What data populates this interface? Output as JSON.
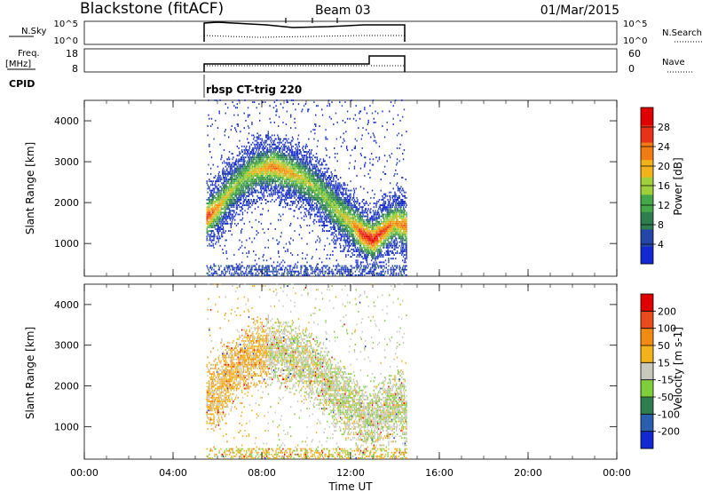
{
  "header": {
    "station": "Blackstone (fitACF)",
    "beam": "Beam 03",
    "date": "01/Mar/2015"
  },
  "noise_panel": {
    "left_label": "N.Sky",
    "left_ticks": [
      "10^5",
      "10^0"
    ],
    "right_ticks": [
      "10^5",
      "10^0"
    ],
    "right_label": "N.Search"
  },
  "freq_panel": {
    "left_label_line1": "Freq.",
    "left_label_line2": "[MHz]",
    "left_ticks": [
      "18",
      "8"
    ],
    "right_ticks": [
      "60",
      "0"
    ],
    "right_label": "Nave"
  },
  "cpid": {
    "label": "CPID",
    "program": "rbsp CT-trig 220"
  },
  "x_axis": {
    "label": "Time UT",
    "ticks": [
      "00:00",
      "04:00",
      "08:00",
      "12:00",
      "16:00",
      "20:00",
      "00:00"
    ]
  },
  "colors": {
    "power": [
      "#1428d2",
      "#2346a8",
      "#2e7d4f",
      "#44a84a",
      "#9fd03c",
      "#f2b21c",
      "#f27c14",
      "#e8321a",
      "#e00000"
    ],
    "velocity": [
      "#1428d2",
      "#2a5fb0",
      "#2e7d4f",
      "#7fcf3c",
      "#c8c8bc",
      "#f2b21c",
      "#f28a14",
      "#e84a1a",
      "#e00000"
    ]
  },
  "chart_data": [
    {
      "type": "heatmap",
      "name": "Power",
      "ylabel": "Slant Range [km]",
      "ylim": [
        200,
        4500
      ],
      "yticks": [
        "1000",
        "2000",
        "3000",
        "4000"
      ],
      "xlim_hours": [
        0,
        24
      ],
      "time_coverage_hours": [
        5.5,
        14.5
      ],
      "colorbar": {
        "label": "Power [dB]",
        "ticks": [
          "4",
          "8",
          "12",
          "16",
          "20",
          "24",
          "28"
        ],
        "range": [
          0,
          30
        ]
      },
      "traces": [
        {
          "t": [
            5.5,
            6.0,
            6.5,
            7.0,
            7.5,
            8.0,
            8.5,
            9.0,
            9.5,
            10.0,
            10.5,
            11.0,
            11.5,
            12.0,
            12.5,
            13.0,
            13.5,
            14.0,
            14.5
          ],
          "range": [
            1600,
            1850,
            2200,
            2500,
            2700,
            2800,
            2850,
            2750,
            2650,
            2500,
            2300,
            2000,
            1700,
            1500,
            1200,
            1050,
            1300,
            1500,
            1400
          ],
          "power": [
            24,
            18,
            14,
            12,
            14,
            16,
            20,
            18,
            16,
            14,
            12,
            12,
            14,
            16,
            24,
            26,
            22,
            18,
            22
          ]
        }
      ]
    },
    {
      "type": "heatmap",
      "name": "Velocity",
      "ylabel": "Slant Range [km]",
      "ylim": [
        200,
        4500
      ],
      "yticks": [
        "1000",
        "2000",
        "3000",
        "4000"
      ],
      "xlim_hours": [
        0,
        24
      ],
      "time_coverage_hours": [
        5.5,
        14.5
      ],
      "colorbar": {
        "label": "Velocity [m s-1]",
        "ticks": [
          "200",
          "100",
          "50",
          "15",
          "-15",
          "-50",
          "-100",
          "-200"
        ],
        "range": [
          -250,
          250
        ]
      }
    }
  ]
}
